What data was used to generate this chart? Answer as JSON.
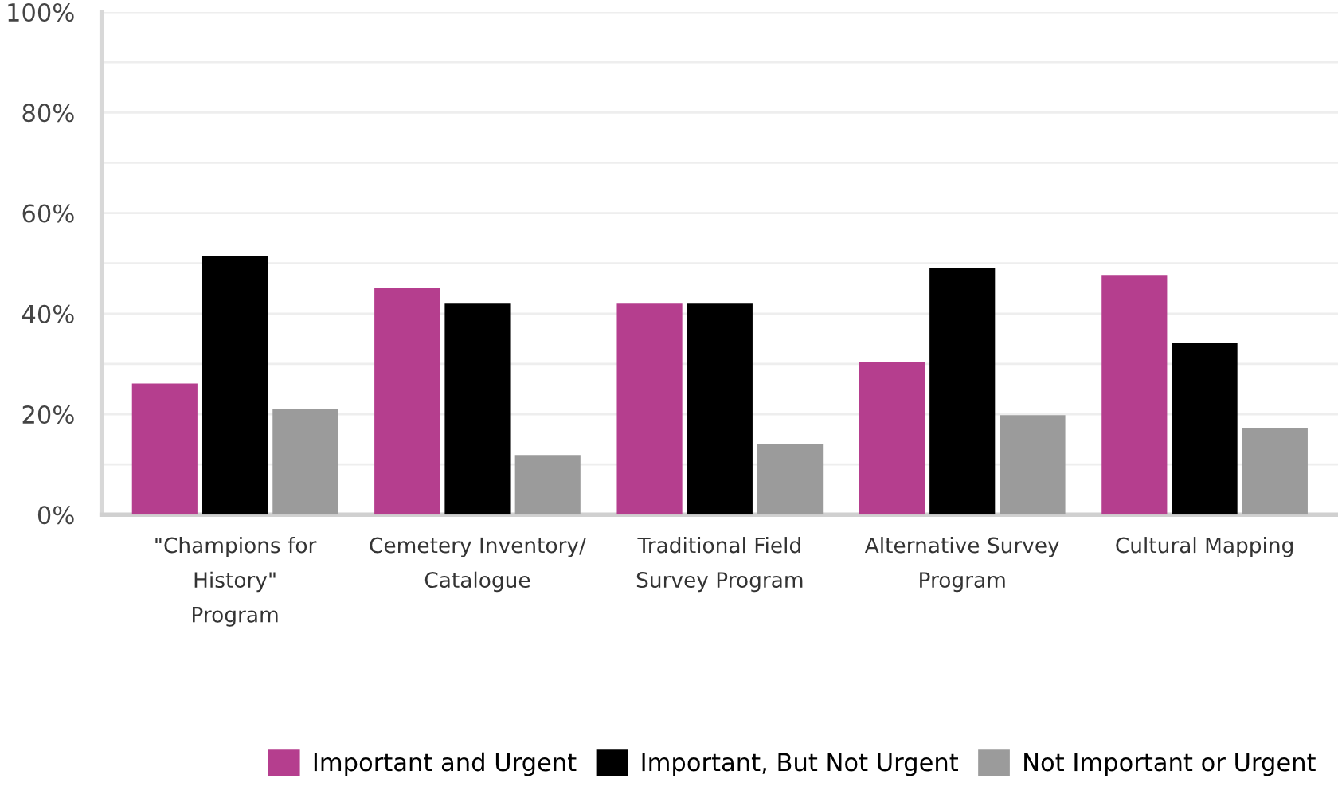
{
  "chart_data": {
    "type": "bar",
    "categories": [
      "\"Champions for\nHistory\"\nProgram",
      "Cemetery Inventory/\nCatalogue",
      "Traditional Field\nSurvey Program",
      "Alternative Survey\nProgram",
      "Cultural Mapping"
    ],
    "series": [
      {
        "name": "Important and Urgent",
        "color": "#b53e8e",
        "values": [
          26.1,
          45.2,
          42.0,
          30.3,
          47.7
        ]
      },
      {
        "name": "Important, But Not Urgent",
        "color": "#000000",
        "values": [
          51.5,
          42.0,
          42.0,
          49.0,
          34.1
        ]
      },
      {
        "name": "Not Important or Urgent",
        "color": "#9b9b9b",
        "values": [
          21.1,
          11.9,
          14.1,
          19.8,
          17.2
        ]
      }
    ],
    "ylim": [
      0,
      100
    ],
    "yticks": [
      {
        "value": 0,
        "label": "0%"
      },
      {
        "value": 10,
        "label": null
      },
      {
        "value": 20,
        "label": "20%"
      },
      {
        "value": 30,
        "label": null
      },
      {
        "value": 40,
        "label": "40%"
      },
      {
        "value": 50,
        "label": null
      },
      {
        "value": 60,
        "label": "60%"
      },
      {
        "value": 70,
        "label": null
      },
      {
        "value": 80,
        "label": "80%"
      },
      {
        "value": 90,
        "label": null
      },
      {
        "value": 100,
        "label": "100%"
      }
    ],
    "grid": "y",
    "legend": "bottom"
  }
}
